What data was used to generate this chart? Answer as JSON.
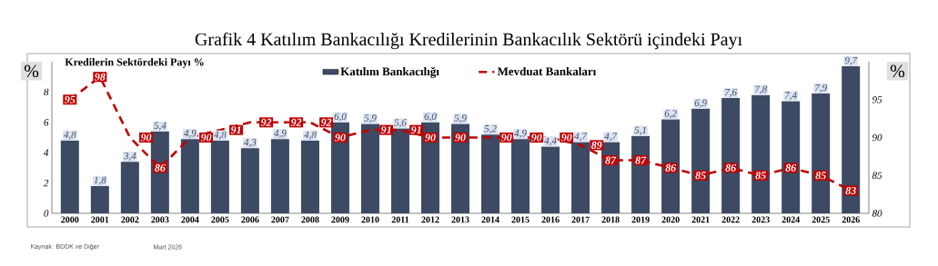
{
  "chart_data": {
    "type": "bar",
    "title": "Grafik 4      Katılım Bankacılığı Kredilerinin Bankacılık Sektörü içindeki Payı",
    "ylabel": "%",
    "y2label": "%",
    "annotations": [
      "Kredilerin Sektördeki Payı  %",
      "Kaynak: BDDK ve Diğer",
      "Mart 2026"
    ],
    "categories": [
      "2000",
      "2001",
      "2002",
      "2003",
      "2004",
      "2005",
      "2006",
      "2007",
      "2008",
      "2009",
      "2010",
      "2011",
      "2012",
      "2013",
      "2014",
      "2015",
      "2016",
      "2017",
      "2018",
      "2019",
      "2020",
      "2021",
      "2022",
      "2023",
      "2024",
      "2025",
      "2026"
    ],
    "series": [
      {
        "name": "Katılım Bankacılığı",
        "color": "#3d4a63",
        "values": [
          4.8,
          1.8,
          3.4,
          5.4,
          4.9,
          4.8,
          4.3,
          4.9,
          4.8,
          6.0,
          5.9,
          5.6,
          6.0,
          5.9,
          5.2,
          4.9,
          4.4,
          4.7,
          4.7,
          5.1,
          6.2,
          6.9,
          7.6,
          7.8,
          7.4,
          7.9,
          9.7
        ],
        "value_labels": [
          "4,8",
          "1,8",
          "3,4",
          "5,4",
          "4,9",
          "4,8",
          "4,3",
          "4,9",
          "4,8",
          "6,0",
          "5,9",
          "5,6",
          "6,0",
          "5,9",
          "5,2",
          "4,9",
          "4,4",
          "4,7",
          "4,7",
          "5,1",
          "6,2",
          "6,9",
          "7,6",
          "7,8",
          "7,4",
          "7,9",
          "9,7"
        ]
      },
      {
        "name": "Mevduat Bankaları",
        "type": "line",
        "axis": "y2",
        "color": "#c00000",
        "line_style": "dashed",
        "values": [
          95,
          98,
          90,
          86,
          90,
          91,
          92,
          92,
          92,
          90,
          91,
          91,
          90,
          90,
          90,
          90,
          90,
          89,
          87,
          87,
          86,
          85,
          86,
          85,
          86,
          85,
          83
        ],
        "value_labels": [
          "95",
          "98",
          "90",
          "86",
          "90",
          "91",
          "92",
          "92",
          "92",
          "90",
          "91",
          "91",
          "90",
          "90",
          "90",
          "90",
          "90",
          "89",
          "87",
          "87",
          "86",
          "85",
          "86",
          "85",
          "86",
          "85",
          "83"
        ]
      }
    ],
    "ylim": [
      0,
      10
    ],
    "yticks": [
      0,
      2,
      4,
      6,
      8
    ],
    "y2lim": [
      80,
      100
    ],
    "y2ticks": [
      80,
      85,
      90,
      95
    ],
    "grid": false,
    "legend": "top"
  }
}
